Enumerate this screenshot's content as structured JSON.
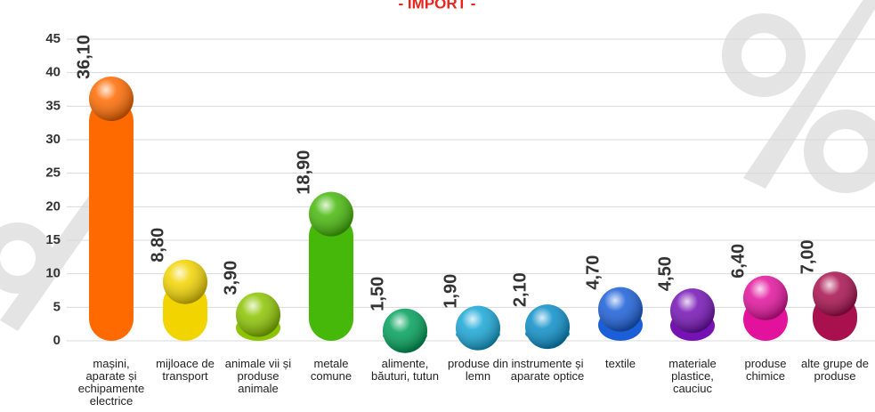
{
  "chart_data": {
    "type": "bar",
    "title": "- IMPORT -",
    "categories": [
      "mașini, aparate și echipamente electrice",
      "mijloace de transport",
      "animale vii și produse animale",
      "metale comune",
      "alimente, băuturi, tutun",
      "produse din lemn",
      "instrumente și aparate optice",
      "textile",
      "materiale plastice, cauciuc",
      "produse chimice",
      "alte grupe de produse"
    ],
    "values": [
      36.1,
      8.8,
      3.9,
      18.9,
      1.5,
      1.9,
      2.1,
      4.7,
      4.5,
      6.4,
      7.0
    ],
    "value_labels": [
      "36,10",
      "8,80",
      "3,90",
      "18,90",
      "1,50",
      "1,90",
      "2,10",
      "4,70",
      "4,50",
      "6,40",
      "7,00"
    ],
    "colors": [
      "#ff6a00",
      "#f2d400",
      "#8cc400",
      "#46b80a",
      "#00a05a",
      "#18a6d6",
      "#0a8ec8",
      "#1a5fd8",
      "#7412b4",
      "#e2129c",
      "#a8104e"
    ],
    "ylim": [
      0,
      45
    ],
    "yticks": [
      0,
      5,
      10,
      15,
      20,
      25,
      30,
      35,
      40,
      45
    ],
    "grid": true
  }
}
